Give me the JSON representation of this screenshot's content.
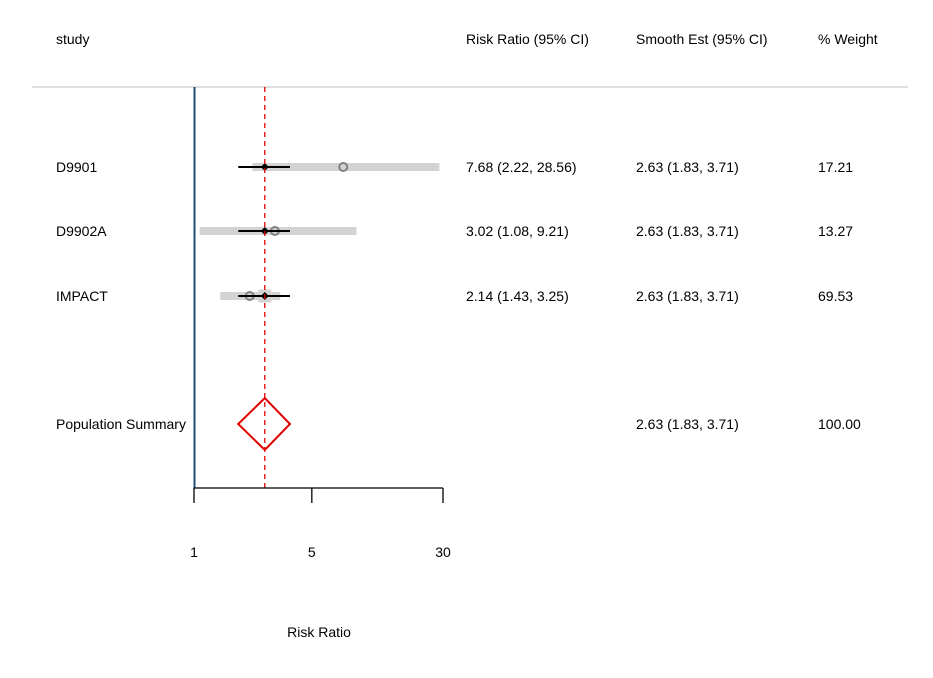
{
  "chart_data": {
    "type": "forest",
    "columns": {
      "study": "study",
      "risk_ratio": "Risk Ratio (95% CI)",
      "smooth": "Smooth Est (95% CI)",
      "weight": "% Weight"
    },
    "xlabel": "Risk Ratio",
    "x_scale": "log",
    "xlim": [
      1,
      30
    ],
    "x_ticks": [
      1,
      5,
      30
    ],
    "x_tick_labels": [
      "1",
      "5",
      "30"
    ],
    "reference_line": 2.63,
    "rows": [
      {
        "study": "D9901",
        "rr": 7.68,
        "lo": 2.22,
        "hi": 28.56,
        "rr_text": "7.68 (2.22, 28.56)",
        "smooth": 2.63,
        "smooth_lo": 1.83,
        "smooth_hi": 3.71,
        "smooth_text": "2.63 (1.83, 3.71)",
        "weight": 17.21,
        "weight_text": "17.21"
      },
      {
        "study": "D9902A",
        "rr": 3.02,
        "lo": 1.08,
        "hi": 9.21,
        "rr_text": "3.02 (1.08, 9.21)",
        "smooth": 2.63,
        "smooth_lo": 1.83,
        "smooth_hi": 3.71,
        "smooth_text": "2.63 (1.83, 3.71)",
        "weight": 13.27,
        "weight_text": "13.27"
      },
      {
        "study": "IMPACT",
        "rr": 2.14,
        "lo": 1.43,
        "hi": 3.25,
        "rr_text": "2.14 (1.43, 3.25)",
        "smooth": 2.63,
        "smooth_lo": 1.83,
        "smooth_hi": 3.71,
        "smooth_text": "2.63 (1.83, 3.71)",
        "weight": 69.53,
        "weight_text": "69.53"
      }
    ],
    "summary": {
      "label": "Population Summary",
      "est": 2.63,
      "lo": 1.83,
      "hi": 3.71,
      "smooth_text": "2.63 (1.83, 3.71)",
      "weight_text": "100.00"
    },
    "colors": {
      "ci_bar": "#d3d3d3",
      "observed_marker": "#808080",
      "smooth_line": "#000000",
      "reference_line": "#e00000",
      "summary_diamond": "#e00000",
      "axis_line": "#1f4e79",
      "separator": "#bfbfbf"
    }
  }
}
